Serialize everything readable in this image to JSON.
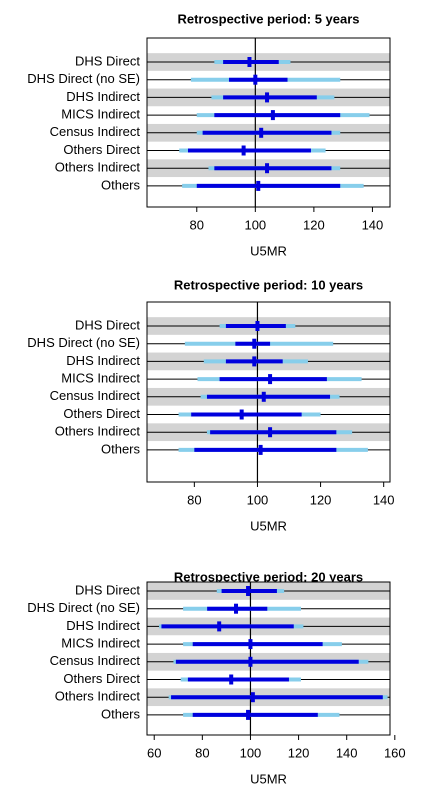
{
  "chart_data": [
    {
      "type": "interval",
      "title": "Retrospective period:  5 years",
      "xlabel": "U5MR",
      "categories": [
        "DHS Direct",
        "DHS Direct (no SE)",
        "DHS Indirect",
        "MICS Indirect",
        "Census Indirect",
        "Others Direct",
        "Others Indirect",
        "Others"
      ],
      "values": [
        98,
        100,
        104,
        106,
        102,
        96,
        104,
        101
      ],
      "inner": [
        [
          89,
          108
        ],
        [
          91,
          111
        ],
        [
          89,
          121
        ],
        [
          86,
          129
        ],
        [
          82,
          126
        ],
        [
          77,
          119
        ],
        [
          86,
          126
        ],
        [
          80,
          129
        ]
      ],
      "outer": [
        [
          86,
          112
        ],
        [
          78,
          129
        ],
        [
          85,
          127
        ],
        [
          80,
          139
        ],
        [
          80,
          129
        ],
        [
          74,
          124
        ],
        [
          84,
          129
        ],
        [
          75,
          137
        ]
      ],
      "inner_color": "#0000dd",
      "outer_color": "#87ceeb",
      "reference": 100,
      "xlim": [
        63,
        146
      ],
      "xticks": [
        80,
        100,
        120,
        140
      ]
    },
    {
      "type": "interval",
      "title": "Retrospective period:  10 years",
      "xlabel": "U5MR",
      "categories": [
        "DHS Direct",
        "DHS Direct (no SE)",
        "DHS Indirect",
        "MICS Indirect",
        "Census Indirect",
        "Others Direct",
        "Others Indirect",
        "Others"
      ],
      "values": [
        100,
        99,
        99,
        104,
        102,
        95,
        104,
        101
      ],
      "inner": [
        [
          90,
          109
        ],
        [
          93,
          104
        ],
        [
          90,
          108
        ],
        [
          88,
          122
        ],
        [
          84,
          123
        ],
        [
          79,
          114
        ],
        [
          85,
          125
        ],
        [
          80,
          125
        ]
      ],
      "outer": [
        [
          88,
          112
        ],
        [
          77,
          124
        ],
        [
          83,
          116
        ],
        [
          81,
          133
        ],
        [
          82,
          126
        ],
        [
          75,
          120
        ],
        [
          84,
          130
        ],
        [
          75,
          135
        ]
      ],
      "inner_color": "#0000dd",
      "outer_color": "#87ceeb",
      "reference": 100,
      "xlim": [
        65,
        142
      ],
      "xticks": [
        80,
        100,
        120,
        140
      ]
    },
    {
      "type": "interval",
      "title": "Retrospective period:  20 years",
      "xlabel": "U5MR",
      "categories": [
        "DHS Direct",
        "DHS Direct (no SE)",
        "DHS Indirect",
        "MICS Indirect",
        "Census Indirect",
        "Others Direct",
        "Others Indirect",
        "Others"
      ],
      "values": [
        99,
        94,
        87,
        100,
        100,
        92,
        101,
        99
      ],
      "inner": [
        [
          88,
          111
        ],
        [
          82,
          107
        ],
        [
          63,
          118
        ],
        [
          76,
          130
        ],
        [
          69,
          145
        ],
        [
          74,
          116
        ],
        [
          67,
          155
        ],
        [
          76,
          128
        ]
      ],
      "outer": [
        [
          86,
          114
        ],
        [
          72,
          121
        ],
        [
          62,
          122
        ],
        [
          72,
          138
        ],
        [
          68,
          149
        ],
        [
          71,
          121
        ],
        [
          66,
          157
        ],
        [
          72,
          137
        ]
      ],
      "inner_color": "#0000dd",
      "outer_color": "#87ceeb",
      "reference": 100,
      "xlim": [
        57,
        158
      ],
      "xticks": [
        60,
        80,
        100,
        120,
        140,
        160
      ]
    }
  ]
}
